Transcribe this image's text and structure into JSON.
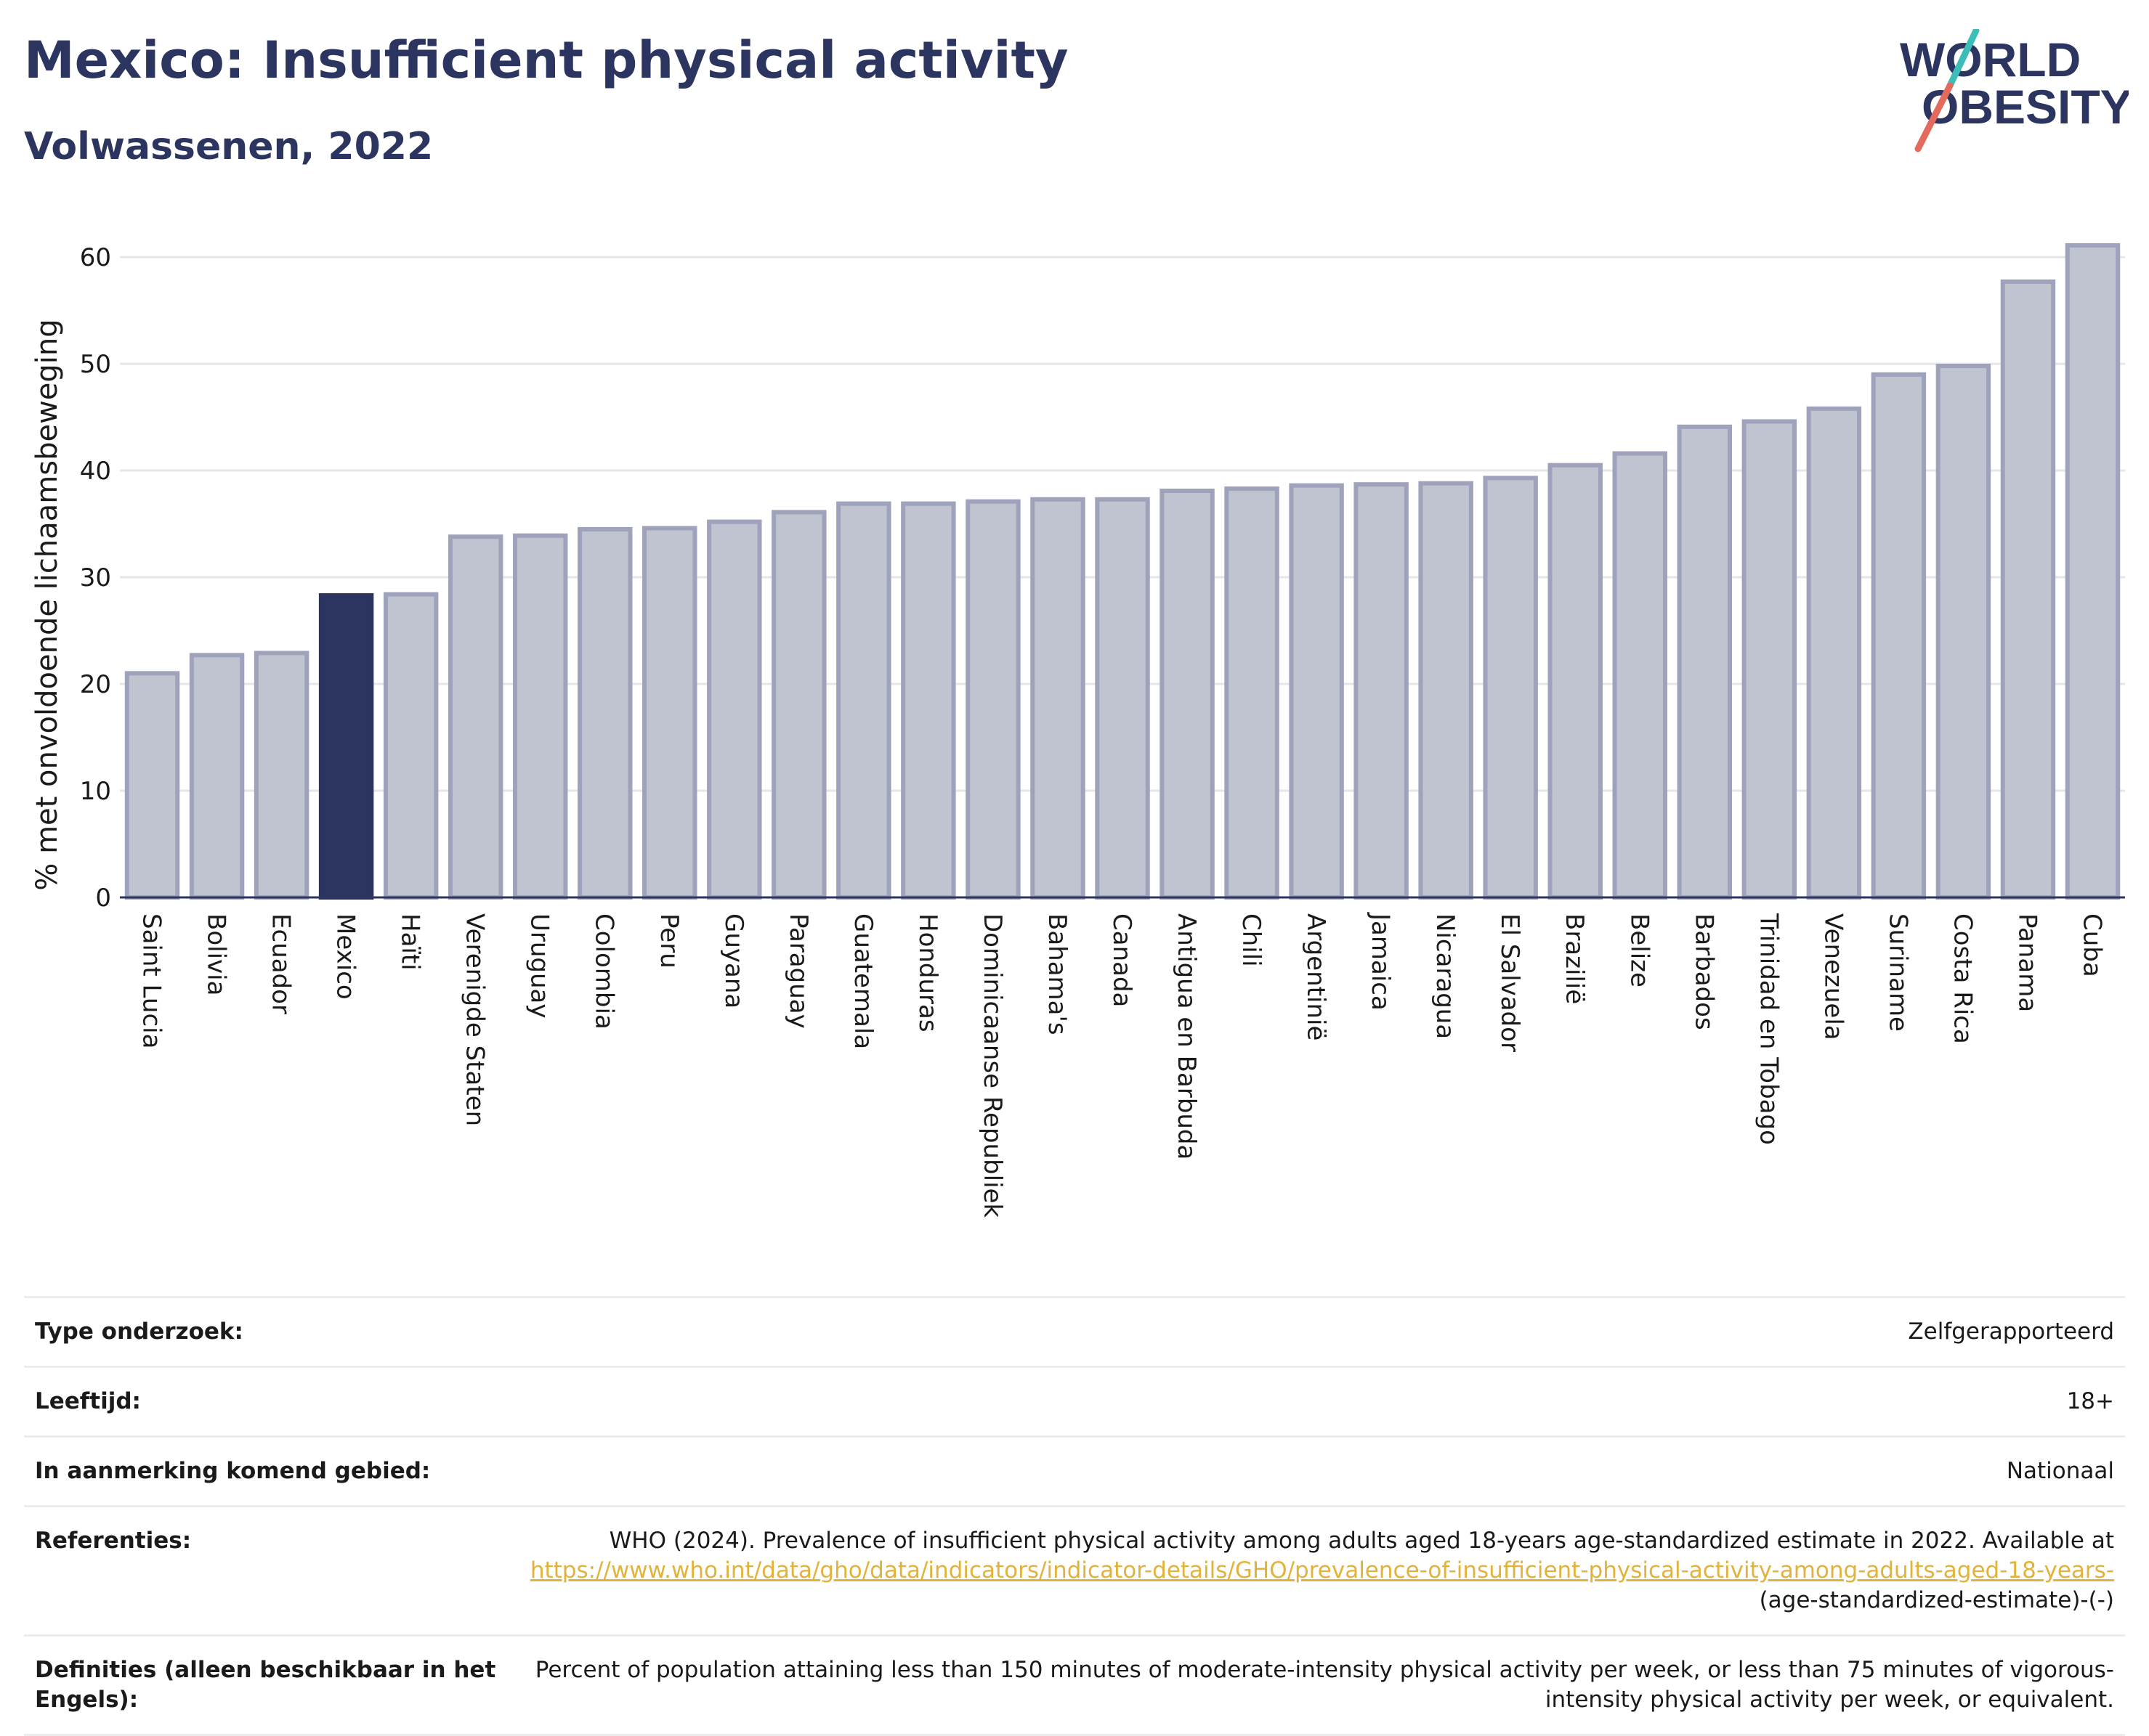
{
  "header": {
    "title": "Mexico: Insufficient physical activity",
    "subtitle": "Volwassenen, 2022",
    "logo": {
      "line1": "WORLD",
      "line2": "OBESITY"
    }
  },
  "colors": {
    "highlight": "#2b3560",
    "bar": "#c0c3d0",
    "bar_edge": "#9ea2ba",
    "logo_teal": "#3dbdb8",
    "logo_coral": "#e46a5e",
    "link": "#e2b33c"
  },
  "chart_data": {
    "type": "bar",
    "ylabel": "% met onvoldoende lichaamsbeweging",
    "ylim": [
      0,
      63
    ],
    "yticks": [
      0,
      10,
      20,
      30,
      40,
      50,
      60
    ],
    "grid": true,
    "highlight": "Mexico",
    "categories": [
      "Saint Lucia",
      "Bolivia",
      "Ecuador",
      "Mexico",
      "Haïti",
      "Verenigde Staten",
      "Uruguay",
      "Colombia",
      "Peru",
      "Guyana",
      "Paraguay",
      "Guatemala",
      "Honduras",
      "Dominicaanse Republiek",
      "Bahama's",
      "Canada",
      "Antigua en Barbuda",
      "Chili",
      "Argentinië",
      "Jamaica",
      "Nicaragua",
      "El Salvador",
      "Brazilië",
      "Belize",
      "Barbados",
      "Trinidad en Tobago",
      "Venezuela",
      "Suriname",
      "Costa Rica",
      "Panama",
      "Cuba"
    ],
    "values": [
      21.0,
      22.7,
      22.9,
      28.3,
      28.4,
      33.8,
      33.9,
      34.5,
      34.6,
      35.2,
      36.1,
      36.9,
      36.9,
      37.1,
      37.3,
      37.3,
      38.1,
      38.3,
      38.6,
      38.7,
      38.8,
      39.3,
      40.5,
      41.6,
      44.1,
      44.6,
      45.8,
      49.0,
      49.8,
      57.7,
      61.1
    ]
  },
  "info": {
    "survey_type_label": "Type onderzoek:",
    "survey_type_value": "Zelfgerapporteerd",
    "age_label": "Leeftijd:",
    "age_value": "18+",
    "area_label": "In aanmerking komend gebied:",
    "area_value": "Nationaal",
    "references_label": "Referenties:",
    "references_text": "WHO (2024). Prevalence of insufficient physical activity among adults aged 18-years age-standardized estimate in 2022. Available at",
    "references_link": "https://www.who.int/data/gho/data/indicators/indicator-details/GHO/prevalence-of-insufficient-physical-activity-among-adults-aged-18-years-",
    "references_suffix": "(age-standardized-estimate)-(-)",
    "definitions_label": "Definities (alleen beschikbaar in het Engels):",
    "definitions_value": "Percent of population attaining less than 150 minutes of moderate-intensity physical activity per week, or less than 75 minutes of vigorous-intensity physical activity per week, or equivalent."
  }
}
